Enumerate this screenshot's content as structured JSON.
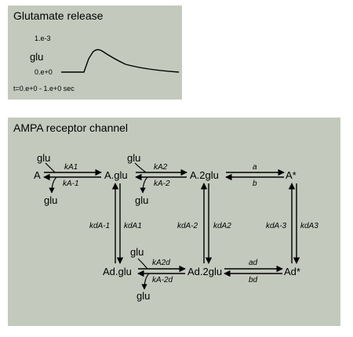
{
  "glutamate_panel": {
    "title": "Glutamate release",
    "y_label": "glu",
    "y_max": "1.e-3",
    "y_min": "0.e+0",
    "time_range": "t=0.e+0 - 1.e+0 sec"
  },
  "ampa_panel": {
    "title": "AMPA receptor channel",
    "states": {
      "A": "A",
      "A_glu": "A.glu",
      "A_2glu": "A.2glu",
      "A_star": "A*",
      "Ad_glu": "Ad.glu",
      "Ad_2glu": "Ad.2glu",
      "Ad_star": "Ad*"
    },
    "glu_label": "glu",
    "rates": {
      "kA1": "kA1",
      "kA_1": "kA-1",
      "kA2": "kA2",
      "kA_2": "kA-2",
      "a": "a",
      "b": "b",
      "kdA1": "kdA1",
      "kdA_1": "kdA-1",
      "kdA2": "kdA2",
      "kdA_2": "kdA-2",
      "kdA3": "kdA3",
      "kdA_3": "kdA-3",
      "kA2d": "kA2d",
      "kA_2d": "kA-2d",
      "ad": "ad",
      "bd": "bd"
    }
  }
}
